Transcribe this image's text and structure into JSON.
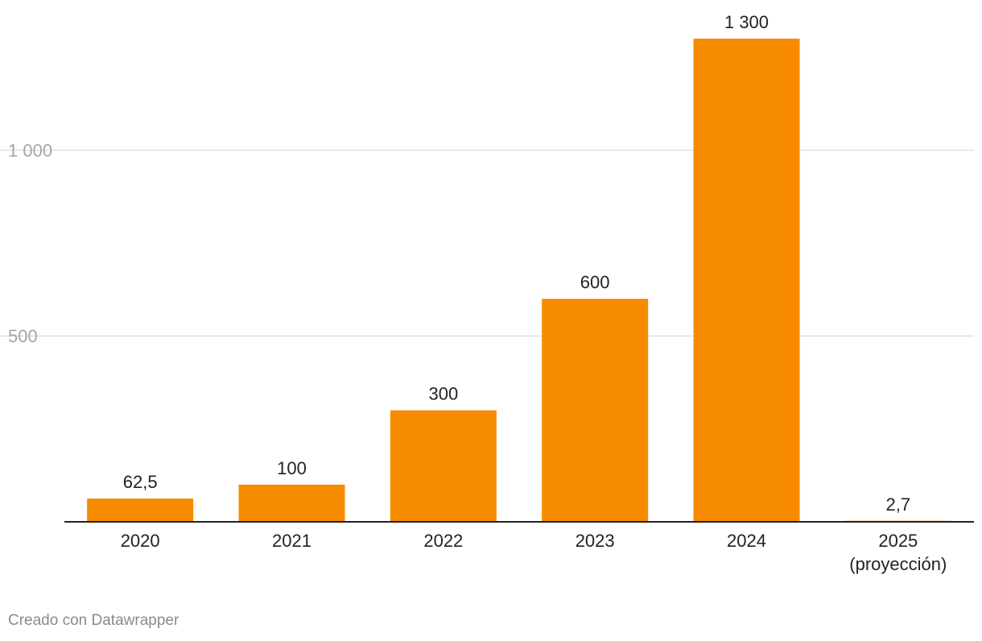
{
  "chart_data": {
    "type": "bar",
    "categories": [
      [
        "2020"
      ],
      [
        "2021"
      ],
      [
        "2022"
      ],
      [
        "2023"
      ],
      [
        "2024"
      ],
      [
        "2025",
        "(proyección)"
      ]
    ],
    "values": [
      62.5,
      100,
      300,
      600,
      1300,
      2.7
    ],
    "value_labels": [
      "62,5",
      "100",
      "300",
      "600",
      "1 300",
      "2,7"
    ],
    "y_ticks": [
      {
        "value": 500,
        "label": "500"
      },
      {
        "value": 1000,
        "label": "1 000"
      }
    ],
    "ylim": [
      0,
      1300
    ],
    "grid": true,
    "colors": {
      "bar": "#f78b00",
      "grid": "#e0e0e0",
      "axis": "#222222",
      "tick_label": "#a6a6a6",
      "label": "#222222"
    }
  },
  "footer": {
    "credit": "Creado con Datawrapper"
  }
}
